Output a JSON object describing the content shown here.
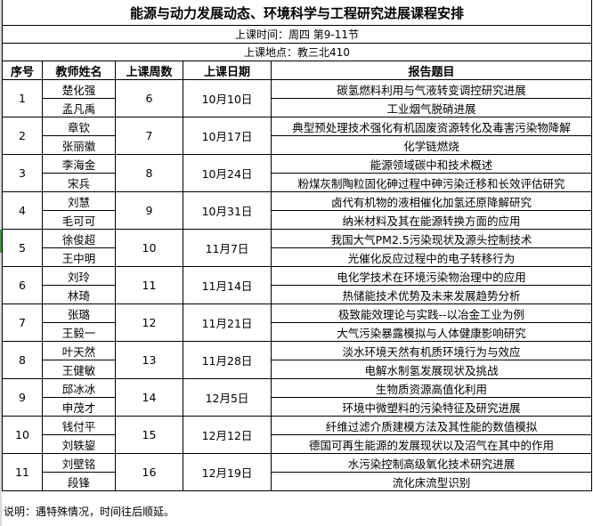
{
  "title": "能源与动力发展动态、环境科学与工程研究进展课程安排",
  "time": "上课时间：周四 第9-11节",
  "location": "上课地点：教三北410",
  "headers": [
    "序号",
    "教师姓名",
    "上课周数",
    "上课日期",
    "报告题目"
  ],
  "rows": [
    {
      "no": "1",
      "week": "6",
      "date": "10月10日",
      "talks": [
        {
          "teacher": "楚化强",
          "topic": "碳氢燃料利用与气液转变调控研究进展"
        },
        {
          "teacher": "孟凡禹",
          "topic": "工业烟气脱硝进展"
        }
      ]
    },
    {
      "no": "2",
      "week": "7",
      "date": "10月17日",
      "talks": [
        {
          "teacher": "章钦",
          "topic": "典型预处理技术强化有机固废资源转化及毒害污染物降解"
        },
        {
          "teacher": "张丽徽",
          "topic": "化学链燃烧"
        }
      ]
    },
    {
      "no": "3",
      "week": "8",
      "date": "10月24日",
      "talks": [
        {
          "teacher": "李海金",
          "topic": "能源领域碳中和技术概述"
        },
        {
          "teacher": "宋兵",
          "topic": "粉煤灰制陶粒固化砷过程中砷污染迁移和长效评估研究"
        }
      ]
    },
    {
      "no": "4",
      "week": "9",
      "date": "10月31日",
      "talks": [
        {
          "teacher": "刘慧",
          "topic": "卤代有机物的液相催化加氢还原降解研究"
        },
        {
          "teacher": "毛可可",
          "topic": "纳米材料及其在能源转换方面的应用"
        }
      ]
    },
    {
      "no": "5",
      "week": "10",
      "date": "11月7日",
      "talks": [
        {
          "teacher": "徐俊超",
          "topic": "我国大气PM2.5污染现状及源头控制技术"
        },
        {
          "teacher": "王中明",
          "topic": "光催化反应过程中的电子转移行为"
        }
      ]
    },
    {
      "no": "6",
      "week": "11",
      "date": "11月14日",
      "talks": [
        {
          "teacher": "刘玲",
          "topic": "电化学技术在环境污染物治理中的应用"
        },
        {
          "teacher": "林琦",
          "topic": "热储能技术优势及未来发展趋势分析"
        }
      ]
    },
    {
      "no": "7",
      "week": "12",
      "date": "11月21日",
      "talks": [
        {
          "teacher": "张璐",
          "topic": "极致能效理论与实践--以冶金工业为例"
        },
        {
          "teacher": "王毅一",
          "topic": "大气污染暴露模拟与人体健康影响研究"
        }
      ]
    },
    {
      "no": "8",
      "week": "13",
      "date": "11月28日",
      "talks": [
        {
          "teacher": "叶天然",
          "topic": "淡水环境天然有机质环境行为与效应"
        },
        {
          "teacher": "王健敏",
          "topic": "电解水制氢发展现状及挑战"
        }
      ]
    },
    {
      "no": "9",
      "week": "14",
      "date": "12月5日",
      "talks": [
        {
          "teacher": "邱冰冰",
          "topic": "生物质资源高值化利用"
        },
        {
          "teacher": "申茂才",
          "topic": "环境中微塑料的污染特征及研究进展"
        }
      ]
    },
    {
      "no": "10",
      "week": "15",
      "date": "12月12日",
      "talks": [
        {
          "teacher": "钱付平",
          "topic": "纤维过滤介质建模方法及其性能的数值模拟"
        },
        {
          "teacher": "刘轶鋆",
          "topic": "德国可再生能源的发展现状以及沼气在其中的作用"
        }
      ]
    },
    {
      "no": "11",
      "week": "16",
      "date": "12月19日",
      "talks": [
        {
          "teacher": "刘壁铭",
          "topic": "水污染控制高级氧化技术研究进展"
        },
        {
          "teacher": "段锋",
          "topic": "流化床流型识别"
        }
      ]
    }
  ],
  "note": "说明：遇特殊情况，时间往后顺延。"
}
